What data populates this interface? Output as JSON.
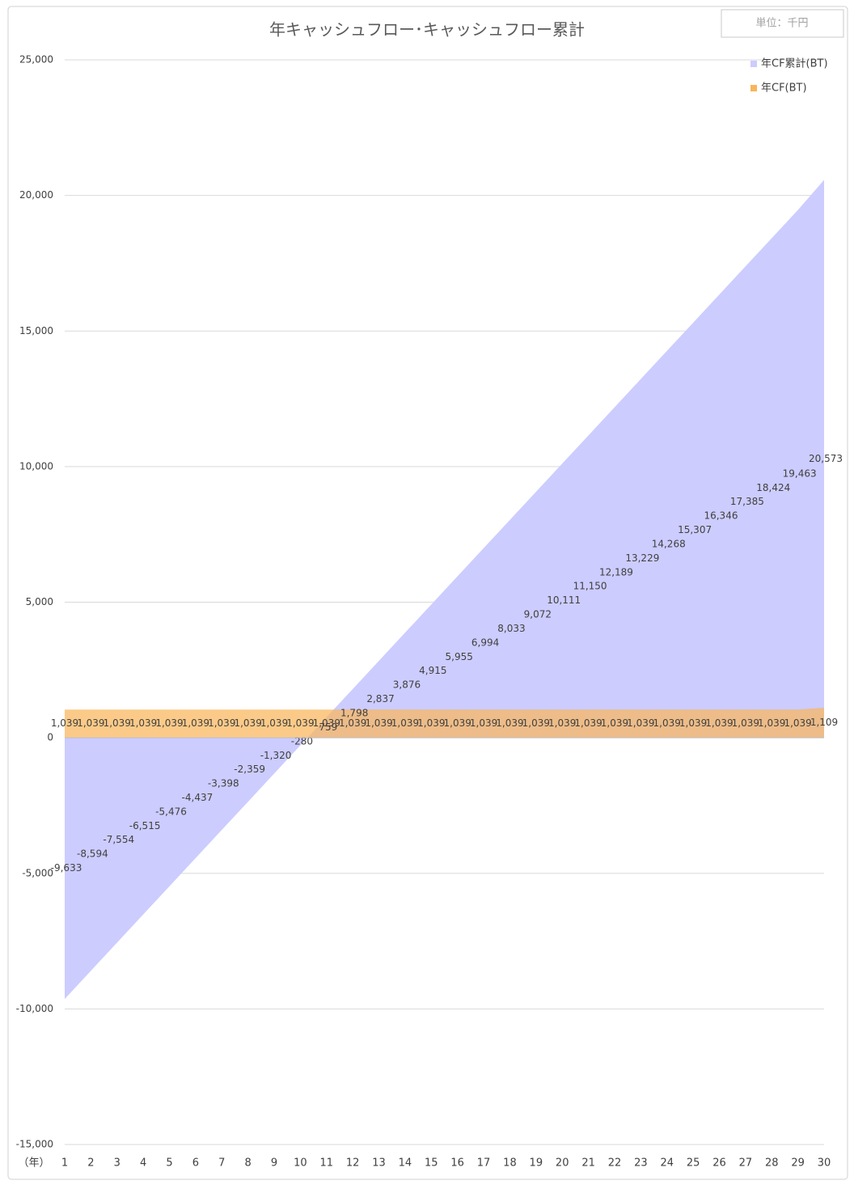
{
  "chart_data": {
    "type": "area",
    "title": "年キャッシュフロー･キャッシュフロー累計",
    "unit_note": "単位：千円",
    "x_label": "（年）",
    "categories": [
      "1",
      "2",
      "3",
      "4",
      "5",
      "6",
      "7",
      "8",
      "9",
      "10",
      "11",
      "12",
      "13",
      "14",
      "15",
      "16",
      "17",
      "18",
      "19",
      "20",
      "21",
      "22",
      "23",
      "24",
      "25",
      "26",
      "27",
      "28",
      "29",
      "30"
    ],
    "series": [
      {
        "name": "年CF累計(BT)",
        "color": "#ccccff",
        "values": [
          -9633,
          -8594,
          -7554,
          -6515,
          -5476,
          -4437,
          -3398,
          -2359,
          -1320,
          -280,
          759,
          1798,
          2837,
          3876,
          4915,
          5955,
          6994,
          8033,
          9072,
          10111,
          11150,
          12189,
          13229,
          14268,
          15307,
          16346,
          17385,
          18424,
          19463,
          20573
        ],
        "value_labels": [
          "-9,633",
          "-8,594",
          "-7,554",
          "-6,515",
          "-5,476",
          "-4,437",
          "-3,398",
          "-2,359",
          "-1,320",
          "-280",
          "759",
          "1,798",
          "2,837",
          "3,876",
          "4,915",
          "5,955",
          "6,994",
          "8,033",
          "9,072",
          "10,111",
          "11,150",
          "12,189",
          "13,229",
          "14,268",
          "15,307",
          "16,346",
          "17,385",
          "18,424",
          "19,463",
          "20,573"
        ]
      },
      {
        "name": "年CF(BT)",
        "color": "#f9b55a",
        "values": [
          1039,
          1039,
          1039,
          1039,
          1039,
          1039,
          1039,
          1039,
          1039,
          1039,
          1039,
          1039,
          1039,
          1039,
          1039,
          1039,
          1039,
          1039,
          1039,
          1039,
          1039,
          1039,
          1039,
          1039,
          1039,
          1039,
          1039,
          1039,
          1039,
          1109
        ],
        "value_labels": [
          "1,039",
          "1,039",
          "1,039",
          "1,039",
          "1,039",
          "1,039",
          "1,039",
          "1,039",
          "1,039",
          "1,039",
          "1,039",
          "1,039",
          "1,039",
          "1,039",
          "1,039",
          "1,039",
          "1,039",
          "1,039",
          "1,039",
          "1,039",
          "1,039",
          "1,039",
          "1,039",
          "1,039",
          "1,039",
          "1,039",
          "1,039",
          "1,039",
          "1,039",
          "1,109"
        ]
      }
    ],
    "ylim": [
      -15000,
      25000
    ],
    "yticks": [
      {
        "value": -15000,
        "label": "-15,000"
      },
      {
        "value": -10000,
        "label": "-10,000"
      },
      {
        "value": -5000,
        "label": "-5,000"
      },
      0,
      {
        "value": 5000,
        "label": "5,000"
      },
      {
        "value": 10000,
        "label": "10,000"
      },
      {
        "value": 15000,
        "label": "15,000"
      },
      {
        "value": 20000,
        "label": "20,000"
      },
      {
        "value": 25000,
        "label": "25,000"
      }
    ],
    "grid": true,
    "legend": "top-right"
  }
}
